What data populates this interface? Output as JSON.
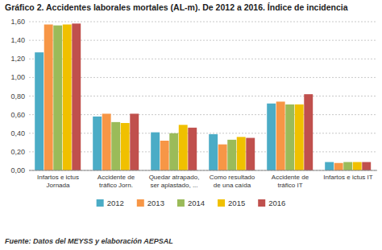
{
  "chart_data": {
    "type": "bar",
    "title": "Gráfico 2. Accidentes laborales mortales (AL-m). De 2012 a 2016. Índice de incidencia",
    "categories": [
      "Infartos e ictus\nJornada",
      "Accidente de\ntráfico Jorn.",
      "Quedar atrapado,\nser aplastado, ...",
      "Como resultado\nde una caída",
      "Accidente de\ntráfico IT",
      "Infartos e ictus IT"
    ],
    "series": [
      {
        "name": "2012",
        "color": "#4bacc6",
        "values": [
          1.27,
          0.58,
          0.41,
          0.39,
          0.72,
          0.09
        ]
      },
      {
        "name": "2013",
        "color": "#f79646",
        "values": [
          1.57,
          0.61,
          0.32,
          0.28,
          0.74,
          0.08
        ]
      },
      {
        "name": "2014",
        "color": "#9bbb59",
        "values": [
          1.56,
          0.52,
          0.4,
          0.33,
          0.71,
          0.09
        ]
      },
      {
        "name": "2015",
        "color": "#f0c000",
        "values": [
          1.57,
          0.51,
          0.49,
          0.36,
          0.71,
          0.09
        ]
      },
      {
        "name": "2016",
        "color": "#c0504d",
        "values": [
          1.58,
          0.61,
          0.46,
          0.35,
          0.82,
          0.09
        ]
      }
    ],
    "ylim": [
      0,
      1.6
    ],
    "yticks": [
      {
        "value": 0.0,
        "label": "0,00"
      },
      {
        "value": 0.2,
        "label": "0,20"
      },
      {
        "value": 0.4,
        "label": "0,40"
      },
      {
        "value": 0.6,
        "label": "0,60"
      },
      {
        "value": 0.8,
        "label": "0,80"
      },
      {
        "value": 1.0,
        "label": "1,00"
      },
      {
        "value": 1.2,
        "label": "1,20"
      },
      {
        "value": 1.4,
        "label": "1,40"
      },
      {
        "value": 1.6,
        "label": "1,60"
      }
    ],
    "grid": true,
    "legend": "bottom",
    "annotations": [
      "Fuente: Datos del MEYSS y elaboración AEPSAL"
    ]
  }
}
